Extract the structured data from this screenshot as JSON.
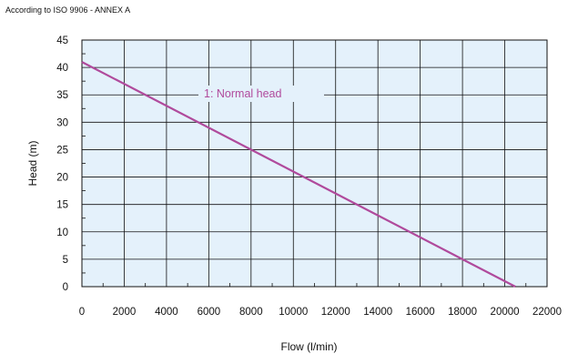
{
  "note": "According to ISO 9906 - ANNEX A",
  "colors": {
    "plot_bg": "#e4f1fb",
    "grid": "#111111",
    "curve": "#b04a9c",
    "label": "#b04a9c"
  },
  "chart_data": {
    "type": "line",
    "title": "",
    "xlabel": "Flow (l/min)",
    "ylabel": "Head (m)",
    "xlim": [
      0,
      22000
    ],
    "ylim": [
      0,
      45
    ],
    "xticks": [
      0,
      2000,
      4000,
      6000,
      8000,
      10000,
      12000,
      14000,
      16000,
      18000,
      20000,
      22000
    ],
    "yticks": [
      0,
      5,
      10,
      15,
      20,
      25,
      30,
      35,
      40,
      45
    ],
    "grid": true,
    "series": [
      {
        "name": "1: Normal head",
        "x": [
          0,
          20500
        ],
        "y": [
          41,
          0
        ]
      }
    ]
  }
}
